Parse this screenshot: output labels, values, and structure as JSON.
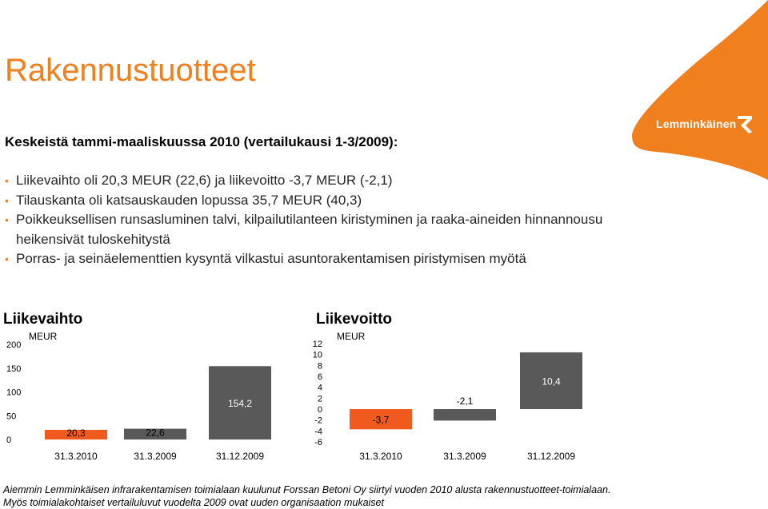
{
  "title": "Rakennustuotteet",
  "logo_text": "Lemminkäinen",
  "subtitle": "Keskeistä tammi-maaliskuussa 2010 (vertailukausi 1-3/2009):",
  "bullets": [
    "Liikevaihto oli 20,3 MEUR (22,6) ja liikevoitto -3,7 MEUR (-2,1)",
    "Tilauskanta oli katsauskauden lopussa 35,7 MEUR (40,3)",
    "Poikkeuksellisen runsasluminen talvi, kilpailutilanteen kiristyminen ja raaka-aineiden hinnannousu heikensivät tuloskehitystä",
    "Porras- ja seinäelementtien kysyntä vilkastui asuntorakentamisen piristymisen myötä"
  ],
  "colors": {
    "accent": "#F07F1E",
    "bar_orange": "#F05A1E",
    "bar_gray": "#595959"
  },
  "chart_data": [
    {
      "type": "bar",
      "title": "Liikevaihto",
      "unit_label": "MEUR",
      "categories": [
        "31.3.2010",
        "31.3.2009",
        "31.12.2009"
      ],
      "values": [
        20.3,
        22.6,
        154.2
      ],
      "value_labels": [
        "20,3",
        "22,6",
        "154,2"
      ],
      "bar_colors": [
        "#F05A1E",
        "#595959",
        "#595959"
      ],
      "ylim": [
        0,
        200
      ],
      "yticks": [
        "0",
        "50",
        "100",
        "150",
        "200"
      ],
      "ytick_values": [
        0,
        50,
        100,
        150,
        200
      ],
      "grid": false
    },
    {
      "type": "bar",
      "title": "Liikevoitto",
      "unit_label": "MEUR",
      "categories": [
        "31.3.2010",
        "31.3.2009",
        "31.12.2009"
      ],
      "values": [
        -3.7,
        -2.1,
        10.4
      ],
      "value_labels": [
        "-3,7",
        "-2,1",
        "10,4"
      ],
      "bar_colors": [
        "#F05A1E",
        "#595959",
        "#595959"
      ],
      "ylim": [
        -6,
        12
      ],
      "yticks": [
        "-6",
        "-4",
        "-2",
        "0",
        "2",
        "4",
        "6",
        "8",
        "10",
        "12"
      ],
      "ytick_values": [
        -6,
        -4,
        -2,
        0,
        2,
        4,
        6,
        8,
        10,
        12
      ],
      "grid": false
    }
  ],
  "footnotes": [
    "Aiemmin Lemminkäisen infrarakentamisen toimialaan kuulunut Forssan Betoni Oy siirtyi vuoden 2010 alusta rakennustuotteet-toimialaan.",
    "Myös toimialakohtaiset vertailuluvut vuodelta 2009 ovat uuden organisaation mukaiset"
  ]
}
